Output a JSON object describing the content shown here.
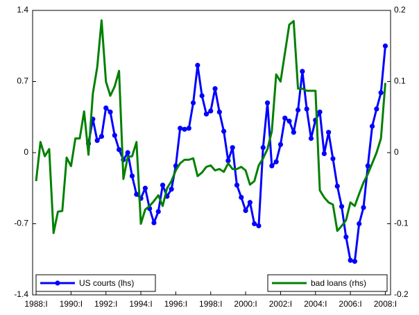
{
  "chart_data": {
    "type": "line",
    "x": [
      1988,
      1988.25,
      1988.5,
      1988.75,
      1989,
      1989.25,
      1989.5,
      1989.75,
      1990,
      1990.25,
      1990.5,
      1990.75,
      1991,
      1991.25,
      1991.5,
      1991.75,
      1992,
      1992.25,
      1992.5,
      1992.75,
      1993,
      1993.25,
      1993.5,
      1993.75,
      1994,
      1994.25,
      1994.5,
      1994.75,
      1995,
      1995.25,
      1995.5,
      1995.75,
      1996,
      1996.25,
      1996.5,
      1996.75,
      1997,
      1997.25,
      1997.5,
      1997.75,
      1998,
      1998.25,
      1998.5,
      1998.75,
      1999,
      1999.25,
      1999.5,
      1999.75,
      2000,
      2000.25,
      2000.5,
      2000.75,
      2001,
      2001.25,
      2001.5,
      2001.75,
      2002,
      2002.25,
      2002.5,
      2002.75,
      2003,
      2003.25,
      2003.5,
      2003.75,
      2004,
      2004.25,
      2004.5,
      2004.75,
      2005,
      2005.25,
      2005.5,
      2005.75,
      2006,
      2006.25,
      2006.5,
      2006.75,
      2007,
      2007.25,
      2007.5,
      2007.75,
      2008
    ],
    "series": [
      {
        "name": "US courts (lhs)",
        "color": "#0000ff",
        "marker": true,
        "legend": "lower left",
        "values": [
          null,
          null,
          null,
          null,
          null,
          null,
          null,
          null,
          null,
          null,
          null,
          null,
          0.09,
          0.33,
          0.12,
          0.16,
          0.44,
          0.4,
          0.17,
          0.03,
          -0.07,
          0.0,
          -0.23,
          -0.41,
          -0.45,
          -0.35,
          -0.55,
          -0.69,
          -0.58,
          -0.32,
          -0.43,
          -0.36,
          -0.13,
          0.24,
          0.23,
          0.24,
          0.49,
          0.86,
          0.56,
          0.38,
          0.41,
          0.63,
          0.4,
          0.21,
          -0.08,
          0.05,
          -0.32,
          -0.44,
          -0.57,
          -0.49,
          -0.7,
          -0.72,
          0.05,
          0.49,
          -0.13,
          -0.09,
          0.08,
          0.34,
          0.31,
          0.2,
          0.42,
          0.8,
          0.43,
          0.14,
          0.32,
          0.4,
          -0.01,
          0.2,
          -0.06,
          -0.33,
          -0.53,
          -0.83,
          -1.06,
          -1.07,
          -0.7,
          -0.54,
          -0.13,
          0.26,
          0.43,
          0.59,
          1.05
        ]
      },
      {
        "name": "bad loans (rhs)",
        "color": "#008000",
        "marker": false,
        "legend": "lower right",
        "axis": "y2",
        "values": [
          -0.04,
          0.015,
          -0.005,
          0.005,
          -0.113,
          -0.083,
          -0.082,
          -0.007,
          -0.019,
          0.02,
          0.02,
          0.058,
          -0.003,
          0.083,
          0.12,
          0.186,
          0.1,
          0.08,
          0.093,
          0.115,
          -0.037,
          -0.006,
          -0.005,
          0.015,
          -0.1,
          -0.08,
          -0.075,
          -0.068,
          -0.06,
          -0.075,
          -0.05,
          -0.04,
          -0.025,
          -0.015,
          -0.01,
          -0.01,
          -0.008,
          -0.033,
          -0.028,
          -0.02,
          -0.018,
          -0.025,
          -0.023,
          -0.027,
          -0.015,
          -0.023,
          -0.023,
          -0.02,
          -0.025,
          -0.045,
          -0.04,
          -0.018,
          -0.008,
          0.005,
          0.03,
          0.11,
          0.1,
          0.14,
          0.18,
          0.185,
          0.09,
          0.09,
          0.087,
          0.087,
          0.087,
          -0.053,
          -0.063,
          -0.07,
          -0.073,
          -0.11,
          -0.103,
          -0.095,
          -0.07,
          -0.075,
          -0.058,
          -0.042,
          -0.03,
          -0.015,
          0.0,
          0.02,
          0.098
        ]
      }
    ],
    "xlim": [
      1987.8,
      2008.3
    ],
    "xticks": [
      {
        "value": 1988,
        "label": "1988:I"
      },
      {
        "value": 1990,
        "label": "1990:I"
      },
      {
        "value": 1992,
        "label": "1992:I"
      },
      {
        "value": 1994,
        "label": "1994:I"
      },
      {
        "value": 1996,
        "label": "1996:I"
      },
      {
        "value": 1998,
        "label": "1998:I"
      },
      {
        "value": 2000,
        "label": "2000:I"
      },
      {
        "value": 2002,
        "label": "2002:I"
      },
      {
        "value": 2004,
        "label": "2004:I"
      },
      {
        "value": 2006,
        "label": "2006:I"
      },
      {
        "value": 2008,
        "label": "2008:I"
      }
    ],
    "ylim": [
      -1.4,
      1.4
    ],
    "yticks": [
      -1.4,
      -0.7,
      0,
      0.7,
      1.4
    ],
    "y2lim": [
      -0.2,
      0.2
    ],
    "y2ticks": [
      -0.2,
      -0.1,
      0,
      0.1,
      0.2
    ]
  }
}
